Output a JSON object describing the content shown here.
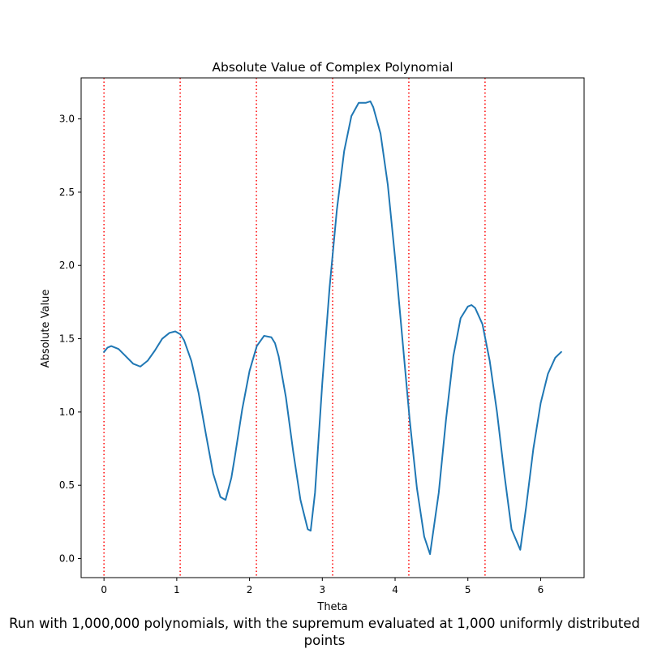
{
  "chart_data": {
    "type": "line",
    "title": "Absolute Value of Complex Polynomial",
    "xlabel": "Theta",
    "ylabel": "Absolute Value",
    "xlim": [
      -0.314,
      6.597
    ],
    "ylim": [
      -0.13,
      3.28
    ],
    "x_ticks": [
      0,
      1,
      2,
      3,
      4,
      5,
      6
    ],
    "x_tick_labels": [
      "0",
      "1",
      "2",
      "3",
      "4",
      "5",
      "6"
    ],
    "y_ticks": [
      0.0,
      0.5,
      1.0,
      1.5,
      2.0,
      2.5,
      3.0
    ],
    "y_tick_labels": [
      "0.0",
      "0.5",
      "1.0",
      "1.5",
      "2.0",
      "2.5",
      "3.0"
    ],
    "grid": false,
    "colors": {
      "line": "#1f77b4",
      "vlines": "#ff0000"
    },
    "vertical_lines": {
      "style": "dotted",
      "x": [
        0,
        1.0472,
        2.0944,
        3.1416,
        4.1888,
        5.236
      ]
    },
    "series": [
      {
        "x": [
          0,
          0.05,
          0.1,
          0.2,
          0.3,
          0.4,
          0.5,
          0.6,
          0.7,
          0.8,
          0.9,
          0.98,
          1.05,
          1.1,
          1.2,
          1.3,
          1.4,
          1.5,
          1.6,
          1.67,
          1.75,
          1.8,
          1.9,
          2.0,
          2.1,
          2.2,
          2.3,
          2.35,
          2.4,
          2.5,
          2.6,
          2.7,
          2.8,
          2.84,
          2.9,
          3.0,
          3.1,
          3.2,
          3.3,
          3.4,
          3.5,
          3.6,
          3.66,
          3.7,
          3.8,
          3.9,
          4.0,
          4.1,
          4.2,
          4.3,
          4.4,
          4.48,
          4.6,
          4.7,
          4.8,
          4.9,
          5.0,
          5.05,
          5.1,
          5.2,
          5.3,
          5.4,
          5.5,
          5.6,
          5.72,
          5.8,
          5.9,
          6.0,
          6.1,
          6.2,
          6.283
        ],
        "y": [
          1.41,
          1.44,
          1.45,
          1.43,
          1.38,
          1.33,
          1.31,
          1.35,
          1.42,
          1.5,
          1.54,
          1.55,
          1.53,
          1.49,
          1.35,
          1.13,
          0.85,
          0.58,
          0.42,
          0.4,
          0.55,
          0.7,
          1.02,
          1.28,
          1.45,
          1.52,
          1.51,
          1.47,
          1.38,
          1.1,
          0.73,
          0.4,
          0.2,
          0.19,
          0.45,
          1.2,
          1.85,
          2.38,
          2.78,
          3.02,
          3.11,
          3.11,
          3.12,
          3.08,
          2.9,
          2.55,
          2.05,
          1.5,
          0.95,
          0.48,
          0.15,
          0.03,
          0.45,
          0.95,
          1.38,
          1.64,
          1.72,
          1.73,
          1.71,
          1.6,
          1.35,
          1.0,
          0.58,
          0.2,
          0.06,
          0.35,
          0.75,
          1.06,
          1.26,
          1.37,
          1.41
        ]
      }
    ]
  },
  "caption": "Run with 1,000,000 polynomials, with the supremum evaluated at 1,000 uniformly distributed points"
}
